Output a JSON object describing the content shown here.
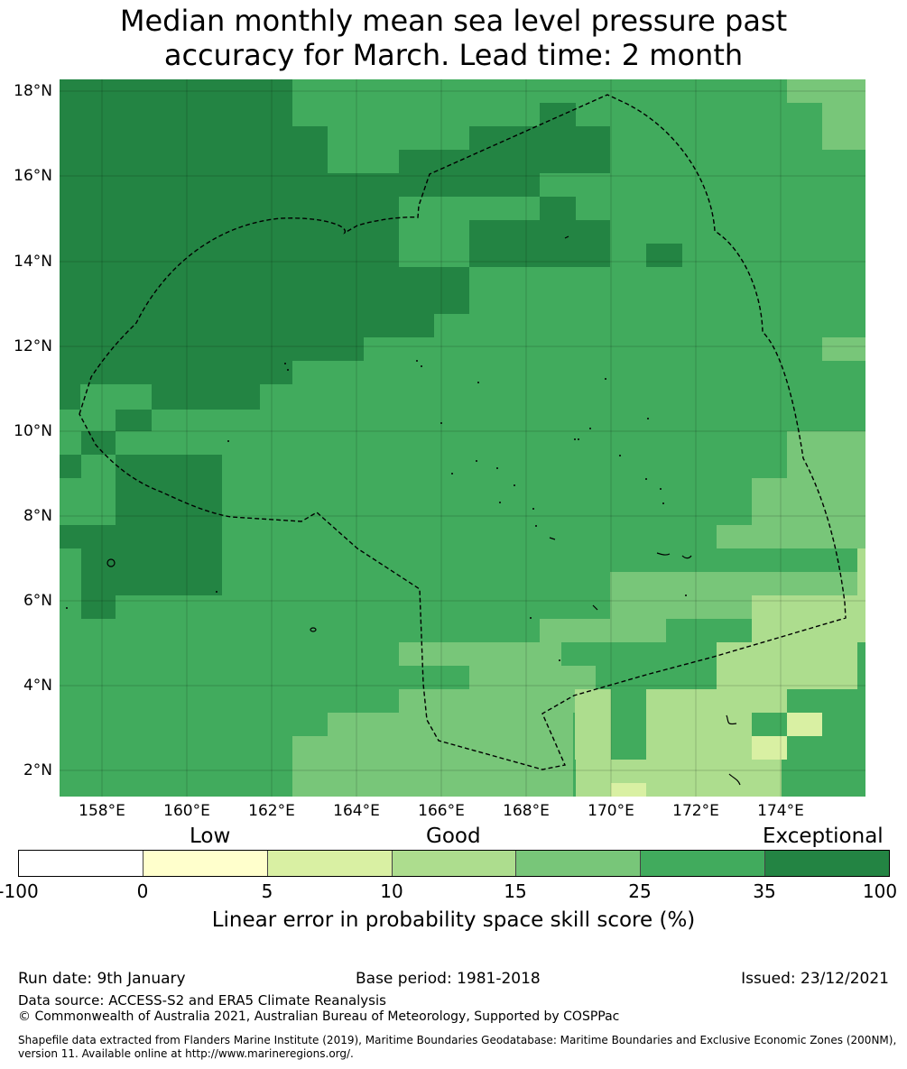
{
  "title_line1": "Median monthly mean sea level pressure past",
  "title_line2": "accuracy for March. Lead time: 2 month",
  "map": {
    "lon_range": [
      157.0,
      176.0
    ],
    "lat_range": [
      1.4,
      18.3
    ],
    "lat_ticks": [
      "18°N",
      "16°N",
      "14°N",
      "12°N",
      "10°N",
      "8°N",
      "6°N",
      "4°N",
      "2°N"
    ],
    "lon_ticks": [
      "158°E",
      "160°E",
      "162°E",
      "164°E",
      "166°E",
      "168°E",
      "170°E",
      "172°E",
      "174°E"
    ]
  },
  "legend": {
    "categories": [
      "Low",
      "Good",
      "Exceptional"
    ],
    "colors": [
      "#ffffff",
      "#ffffcc",
      "#d9f0a3",
      "#addd8e",
      "#78c679",
      "#41ab5d",
      "#238443"
    ],
    "bounds": [
      "-100",
      "0",
      "5",
      "10",
      "15",
      "25",
      "35",
      "100"
    ],
    "label": "Linear error in probability space skill score (%)"
  },
  "footer": {
    "run_date": "Run date: 9th January",
    "base_period": "Base period: 1981-2018",
    "issued": "Issued: 23/12/2021",
    "data_source": "Data source: ACCESS-S2 and ERA5 Climate Reanalysis",
    "copyright": "© Commonwealth of Australia 2021, Australian Bureau of Meteorology, Supported by COSPPac",
    "shapefile": "Shapefile data extracted from Flanders Marine Institute (2019), Maritime Boundaries Geodatabase: Maritime Boundaries and Exclusive Economic Zones (200NM), version 11. Available online at http://www.marineregions.org/."
  }
}
